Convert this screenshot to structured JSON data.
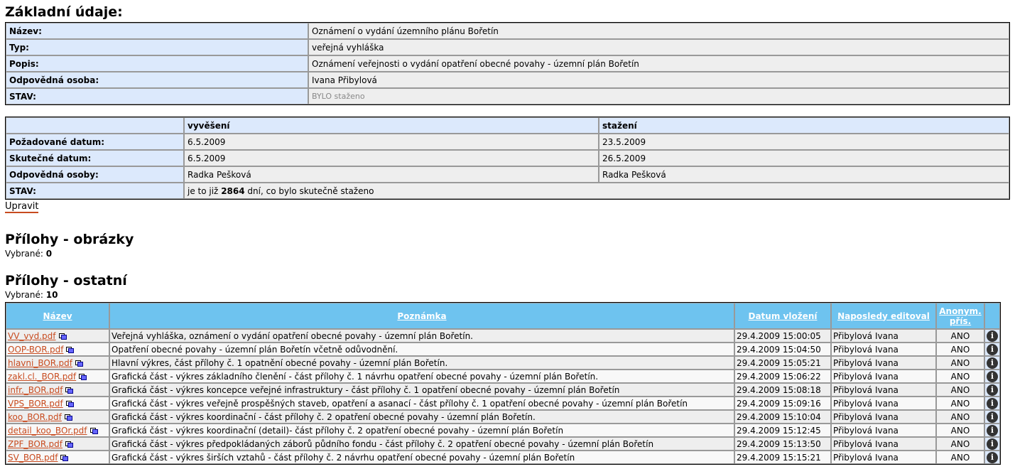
{
  "basic": {
    "title": "Základní údaje:",
    "rows": [
      {
        "label": "Název:",
        "value": "Oznámení o vydání územního plánu Bořetín"
      },
      {
        "label": "Typ:",
        "value": "veřejná vyhláška"
      },
      {
        "label": "Popis:",
        "value": "Oznámení veřejnosti o vydání opatření obecné povahy - územní plán Bořetín"
      },
      {
        "label": "Odpovědná osoba:",
        "value": "Ivana Přibylová"
      },
      {
        "label": "STAV:",
        "value": "BYLO staženo"
      }
    ]
  },
  "dates": {
    "col1": "vyvěšení",
    "col2": "stažení",
    "rows": [
      {
        "label": "Požadované datum:",
        "v1": "6.5.2009",
        "v2": "23.5.2009"
      },
      {
        "label": "Skutečné datum:",
        "v1": "6.5.2009",
        "v2": "26.5.2009"
      },
      {
        "label": "Odpovědná osoby:",
        "v1": "Radka Pešková",
        "v2": "Radka Pešková"
      }
    ],
    "status_label": "STAV:",
    "status_pre": "je to již ",
    "status_days": "2864",
    "status_post": " dní, co bylo skutečně staženo"
  },
  "edit_link": "Upravit",
  "images": {
    "title": "Přílohy - obrázky",
    "selected_label": "Vybrané: ",
    "selected_count": "0"
  },
  "others": {
    "title": "Přílohy - ostatní",
    "selected_label": "Vybrané: ",
    "selected_count": "10",
    "headers": [
      "Název",
      "Poznámka",
      "Datum vložení",
      "Naposledy editoval",
      "Anonym. přís."
    ],
    "rows": [
      {
        "file": "VV_vyd.pdf",
        "note": "Veřejná vyhláška, oznámení o vydání opatření obecné povahy - územní plán Bořetín.",
        "date": "29.4.2009 15:00:05",
        "editor": "Přibylová Ivana",
        "anon": "ANO"
      },
      {
        "file": "OOP-BOR.pdf",
        "note": "Opatření obecné povahy - územní plán Bořetín včetně odůvodnění.",
        "date": "29.4.2009 15:04:50",
        "editor": "Přibylová Ivana",
        "anon": "ANO"
      },
      {
        "file": "hlavni_BOR.pdf",
        "note": "Hlavní výkres, část přílohy č. 1 opatnění obecné povahy - územní plán Bořetín.",
        "date": "29.4.2009 15:05:21",
        "editor": "Přibylová Ivana",
        "anon": "ANO"
      },
      {
        "file": "zakl.cl._BOR.pdf",
        "note": "Grafická část - výkres základního členění - část přílohy č. 1 návrhu opatření obecné povahy - územní plán Bořetín.",
        "date": "29.4.2009 15:06:22",
        "editor": "Přibylová Ivana",
        "anon": "ANO"
      },
      {
        "file": "infr._BOR.pdf",
        "note": "Grafická část - výkres koncepce veřejné infrastruktury - část přílohy č. 1 opatření obecné povahy - územní plán Bořetín",
        "date": "29.4.2009 15:08:18",
        "editor": "Přibylová Ivana",
        "anon": "ANO"
      },
      {
        "file": "VPS_BOR.pdf",
        "note": "Grafická část - výkres veřejně prospěšných staveb, opatření a asanací - část přílohy č. 1 opatření obecné povahy - územní plán Bořetín",
        "date": "29.4.2009 15:09:16",
        "editor": "Přibylová Ivana",
        "anon": "ANO"
      },
      {
        "file": "koo_BOR.pdf",
        "note": "Grafická část - výkres koordinační - část přílohy č. 2 opatření obecné povahy - územní plán Bořetín.",
        "date": "29.4.2009 15:10:04",
        "editor": "Přibylová Ivana",
        "anon": "ANO"
      },
      {
        "file": "detail_koo_BOr.pdf",
        "note": "Grafická část - výkres koordinační (detail)- část přílohy č. 2 opatření obecné povahy - územní plán Bořetín",
        "date": "29.4.2009 15:12:45",
        "editor": "Přibylová Ivana",
        "anon": "ANO"
      },
      {
        "file": "ZPF_BOR.pdf",
        "note": "Grafická část - výkres předpokládaných záborů půdního fondu - část přílohy č. 2 opatření obecné povahy - územní plán Bořetín",
        "date": "29.4.2009 15:13:50",
        "editor": "Přibylová Ivana",
        "anon": "ANO"
      },
      {
        "file": "SV_BOR.pdf",
        "note": "Grafická část - výkres širších vztahů - část přílohy č. 2 návrhu opatření obecné povahy - územní plán Bořetín",
        "date": "29.4.2009 15:15:21",
        "editor": "Přibylová Ivana",
        "anon": "ANO"
      }
    ]
  },
  "colors": {
    "header": "#6ec3ef",
    "label_bg": "#dce9fc",
    "link": "#c84b1f"
  },
  "icons": {
    "file_action": "copy-icon",
    "row_info": "info-icon"
  }
}
